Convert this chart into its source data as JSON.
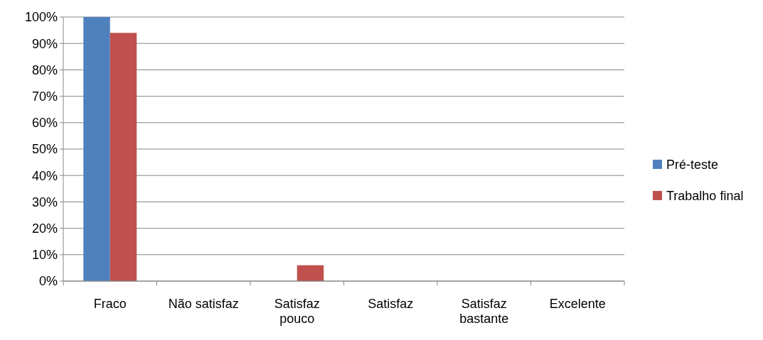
{
  "chart_data": {
    "type": "bar",
    "categories": [
      "Fraco",
      "Não satisfaz",
      "Satisfaz pouco",
      "Satisfaz",
      "Satisfaz bastante",
      "Excelente"
    ],
    "series": [
      {
        "name": "Pré-teste",
        "color": "#4f81bd",
        "values": [
          100,
          0,
          0,
          0,
          0,
          0
        ]
      },
      {
        "name": "Trabalho final",
        "color": "#c0504d",
        "values": [
          94,
          0,
          6,
          0,
          0,
          0
        ]
      }
    ],
    "ylim": [
      0,
      100
    ],
    "yticks": [
      {
        "value": 0,
        "label": "0%"
      },
      {
        "value": 10,
        "label": "10%"
      },
      {
        "value": 20,
        "label": "20%"
      },
      {
        "value": 30,
        "label": "30%"
      },
      {
        "value": 40,
        "label": "40%"
      },
      {
        "value": 50,
        "label": "50%"
      },
      {
        "value": 60,
        "label": "60%"
      },
      {
        "value": 70,
        "label": "70%"
      },
      {
        "value": 80,
        "label": "80%"
      },
      {
        "value": 90,
        "label": "90%"
      },
      {
        "value": 100,
        "label": "100%"
      }
    ],
    "grid": "y",
    "legend": "right"
  }
}
